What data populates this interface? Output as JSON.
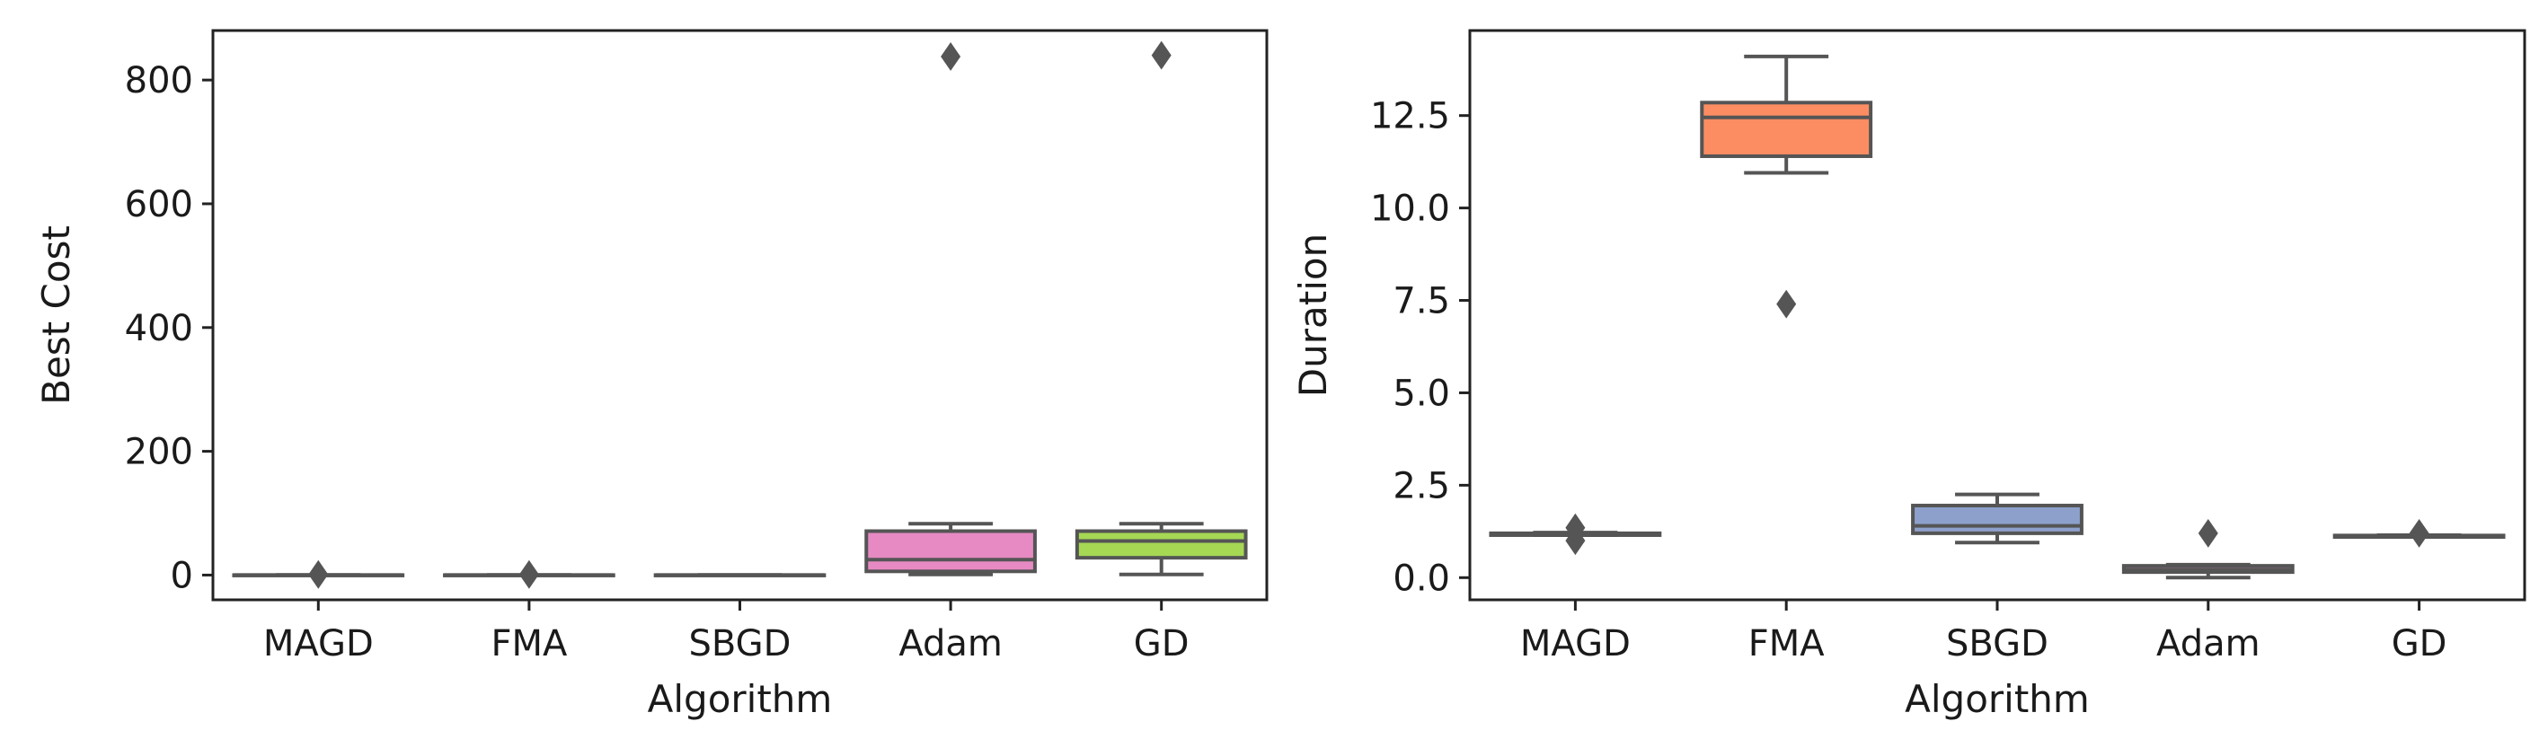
{
  "chart_data": [
    {
      "type": "box",
      "xlabel": "Algorithm",
      "ylabel": "Best Cost",
      "ylim": [
        -40,
        880
      ],
      "yticks": [
        0,
        200,
        400,
        600,
        800
      ],
      "categories": [
        "MAGD",
        "FMA",
        "SBGD",
        "Adam",
        "GD"
      ],
      "boxes": [
        {
          "name": "MAGD",
          "color": "#66c2a5",
          "whisker_low": 0,
          "q1": 0,
          "median": 0,
          "q3": 0,
          "whisker_high": 0,
          "outliers": [
            1
          ]
        },
        {
          "name": "FMA",
          "color": "#fc8d62",
          "whisker_low": 0,
          "q1": 0,
          "median": 0,
          "q3": 0,
          "whisker_high": 0,
          "outliers": [
            1
          ]
        },
        {
          "name": "SBGD",
          "color": "#8da0cb",
          "whisker_low": 0,
          "q1": 0,
          "median": 0,
          "q3": 0,
          "whisker_high": 0,
          "outliers": []
        },
        {
          "name": "Adam",
          "color": "#e78ac3",
          "whisker_low": 1,
          "q1": 6,
          "median": 25,
          "q3": 71,
          "whisker_high": 83,
          "outliers": [
            838
          ]
        },
        {
          "name": "GD",
          "color": "#a6d854",
          "whisker_low": 1,
          "q1": 28,
          "median": 55,
          "q3": 71,
          "whisker_high": 83,
          "outliers": [
            840
          ]
        }
      ]
    },
    {
      "type": "box",
      "xlabel": "Algorithm",
      "ylabel": "Duration",
      "ylim": [
        -0.6,
        14.8
      ],
      "yticks": [
        0.0,
        2.5,
        5.0,
        7.5,
        10.0,
        12.5
      ],
      "ytick_labels": [
        "0.0",
        "2.5",
        "5.0",
        "7.5",
        "10.0",
        "12.5"
      ],
      "categories": [
        "MAGD",
        "FMA",
        "SBGD",
        "Adam",
        "GD"
      ],
      "boxes": [
        {
          "name": "MAGD",
          "color": "#66c2a5",
          "whisker_low": 1.15,
          "q1": 1.15,
          "median": 1.17,
          "q3": 1.2,
          "whisker_high": 1.22,
          "outliers": [
            1.0,
            1.35
          ]
        },
        {
          "name": "FMA",
          "color": "#fc8d62",
          "whisker_low": 10.95,
          "q1": 11.4,
          "median": 12.45,
          "q3": 12.85,
          "whisker_high": 14.1,
          "outliers": [
            7.4
          ]
        },
        {
          "name": "SBGD",
          "color": "#8da0cb",
          "whisker_low": 0.95,
          "q1": 1.2,
          "median": 1.4,
          "q3": 1.95,
          "whisker_high": 2.25,
          "outliers": []
        },
        {
          "name": "Adam",
          "color": "#e78ac3",
          "whisker_low": 0.0,
          "q1": 0.15,
          "median": 0.22,
          "q3": 0.32,
          "whisker_high": 0.35,
          "outliers": [
            1.2
          ]
        },
        {
          "name": "GD",
          "color": "#a6d854",
          "whisker_low": 1.1,
          "q1": 1.1,
          "median": 1.12,
          "q3": 1.14,
          "whisker_high": 1.15,
          "outliers": [
            1.2
          ]
        }
      ]
    }
  ]
}
